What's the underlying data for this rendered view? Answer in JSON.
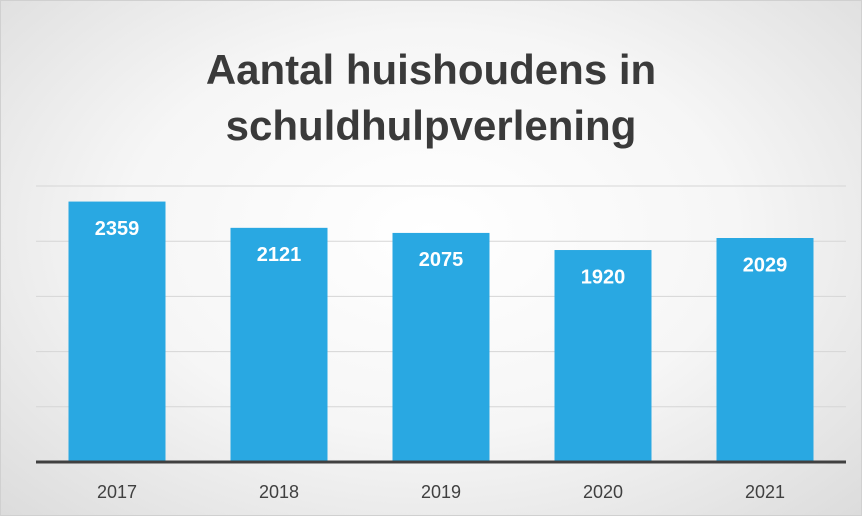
{
  "chart_data": {
    "type": "bar",
    "title": "Aantal huishoudens in schuldhulpverlening",
    "categories": [
      "2017",
      "2018",
      "2019",
      "2020",
      "2021"
    ],
    "values": [
      2359,
      2121,
      2075,
      1920,
      2029
    ],
    "color": "#29a8e2",
    "ylim": [
      0,
      2500
    ],
    "yticks": [
      0,
      500,
      1000,
      1500,
      2000,
      2500
    ],
    "grid": true
  }
}
